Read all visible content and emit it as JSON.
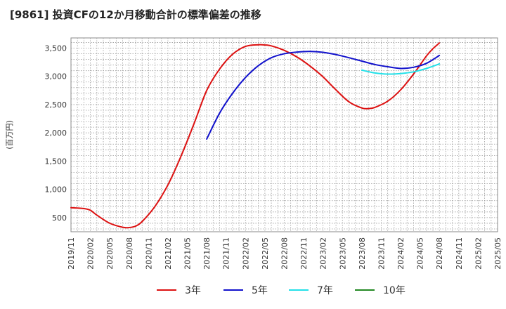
{
  "title": "[9861]  投資CFの12か月移動合計の標準偏差の推移",
  "chart_data": {
    "type": "line",
    "ylabel": "(百万円)",
    "ylim": [
      250,
      3680
    ],
    "yticks": [
      500,
      1000,
      1500,
      2000,
      2500,
      3000,
      3500
    ],
    "ytick_labels": [
      "500",
      "1,000",
      "1,500",
      "2,000",
      "2,500",
      "3,000",
      "3,500"
    ],
    "xlim": [
      "2019-11",
      "2025-05"
    ],
    "xtick_labels": [
      "2019/11",
      "2020/02",
      "2020/05",
      "2020/08",
      "2020/11",
      "2021/02",
      "2021/05",
      "2021/08",
      "2021/11",
      "2022/02",
      "2022/05",
      "2022/08",
      "2022/11",
      "2023/02",
      "2023/05",
      "2023/08",
      "2023/11",
      "2024/02",
      "2024/05",
      "2024/08",
      "2024/11",
      "2025/02",
      "2025/05"
    ],
    "grid": true,
    "legend_position": "bottom",
    "series": [
      {
        "name": "3年",
        "color": "#dd1111",
        "x": [
          "2019-11",
          "2020-01",
          "2020-02",
          "2020-03",
          "2020-05",
          "2020-07",
          "2020-08",
          "2020-09",
          "2020-10",
          "2020-12",
          "2021-02",
          "2021-04",
          "2021-06",
          "2021-08",
          "2021-10",
          "2021-12",
          "2022-02",
          "2022-04",
          "2022-05",
          "2022-06",
          "2022-08",
          "2022-10",
          "2022-12",
          "2023-02",
          "2023-04",
          "2023-06",
          "2023-08",
          "2023-09",
          "2023-10",
          "2023-12",
          "2024-02",
          "2024-04",
          "2024-06",
          "2024-07",
          "2024-08"
        ],
        "y": [
          675,
          660,
          630,
          545,
          400,
          330,
          325,
          350,
          430,
          700,
          1080,
          1580,
          2150,
          2750,
          3130,
          3390,
          3530,
          3560,
          3555,
          3540,
          3460,
          3340,
          3180,
          2990,
          2760,
          2550,
          2440,
          2430,
          2450,
          2560,
          2760,
          3040,
          3360,
          3490,
          3590
        ]
      },
      {
        "name": "5年",
        "color": "#1111cc",
        "x": [
          "2021-08",
          "2021-10",
          "2021-12",
          "2022-02",
          "2022-04",
          "2022-06",
          "2022-08",
          "2022-10",
          "2022-12",
          "2023-02",
          "2023-04",
          "2023-06",
          "2023-08",
          "2023-10",
          "2023-12",
          "2024-02",
          "2024-04",
          "2024-06",
          "2024-08"
        ],
        "y": [
          1890,
          2350,
          2700,
          2980,
          3190,
          3330,
          3400,
          3430,
          3440,
          3425,
          3385,
          3330,
          3270,
          3210,
          3170,
          3140,
          3160,
          3230,
          3370
        ]
      },
      {
        "name": "7年",
        "color": "#22e0e8",
        "x": [
          "2023-08",
          "2023-10",
          "2023-12",
          "2024-02",
          "2024-04",
          "2024-06",
          "2024-08"
        ],
        "y": [
          3110,
          3060,
          3040,
          3050,
          3080,
          3140,
          3220
        ]
      },
      {
        "name": "10年",
        "color": "#228822",
        "x": [],
        "y": []
      }
    ]
  }
}
